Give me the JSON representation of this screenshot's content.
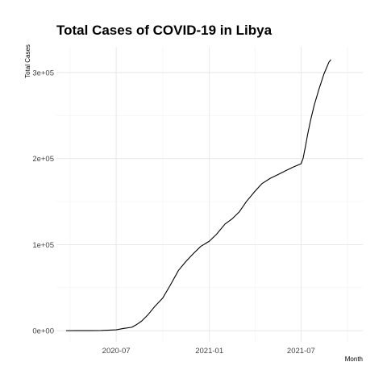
{
  "chart_data": {
    "type": "line",
    "title": "Total Cases of COVID-19 in Libya",
    "xlabel": "Month",
    "ylabel": "Total Cases",
    "x_ticks": [
      {
        "date": "2020-07-01",
        "label": "2020-07"
      },
      {
        "date": "2021-01-01",
        "label": "2021-01"
      },
      {
        "date": "2021-07-01",
        "label": "2021-07"
      }
    ],
    "y_ticks": [
      {
        "value": 0,
        "label": "0e+00"
      },
      {
        "value": 100000,
        "label": "1e+05"
      },
      {
        "value": 200000,
        "label": "2e+05"
      },
      {
        "value": 300000,
        "label": "3e+05"
      }
    ],
    "xlim": [
      "2020-03-05",
      "2021-10-31"
    ],
    "ylim": [
      -13000,
      330000
    ],
    "grid": true,
    "series": [
      {
        "points": [
          [
            "2020-03-24",
            0
          ],
          [
            "2020-04-15",
            50
          ],
          [
            "2020-05-15",
            100
          ],
          [
            "2020-06-01",
            200
          ],
          [
            "2020-06-15",
            500
          ],
          [
            "2020-07-01",
            1000
          ],
          [
            "2020-07-15",
            2500
          ],
          [
            "2020-08-01",
            4000
          ],
          [
            "2020-08-10",
            7000
          ],
          [
            "2020-08-20",
            11000
          ],
          [
            "2020-09-01",
            18000
          ],
          [
            "2020-09-15",
            28000
          ],
          [
            "2020-10-01",
            38000
          ],
          [
            "2020-10-15",
            52000
          ],
          [
            "2020-11-01",
            70000
          ],
          [
            "2020-11-15",
            80000
          ],
          [
            "2020-12-01",
            90000
          ],
          [
            "2020-12-15",
            98000
          ],
          [
            "2021-01-01",
            104000
          ],
          [
            "2021-01-15",
            112000
          ],
          [
            "2021-02-01",
            124000
          ],
          [
            "2021-02-15",
            130000
          ],
          [
            "2021-03-01",
            138000
          ],
          [
            "2021-03-15",
            150000
          ],
          [
            "2021-04-01",
            162000
          ],
          [
            "2021-04-15",
            171000
          ],
          [
            "2021-05-01",
            177000
          ],
          [
            "2021-05-15",
            181000
          ],
          [
            "2021-06-01",
            186000
          ],
          [
            "2021-06-15",
            190000
          ],
          [
            "2021-07-01",
            194000
          ],
          [
            "2021-07-05",
            200000
          ],
          [
            "2021-07-10",
            215000
          ],
          [
            "2021-07-14",
            228000
          ],
          [
            "2021-07-20",
            245000
          ],
          [
            "2021-07-27",
            262000
          ],
          [
            "2021-08-05",
            280000
          ],
          [
            "2021-08-15",
            298000
          ],
          [
            "2021-08-25",
            312000
          ],
          [
            "2021-08-29",
            315000
          ]
        ]
      }
    ]
  }
}
